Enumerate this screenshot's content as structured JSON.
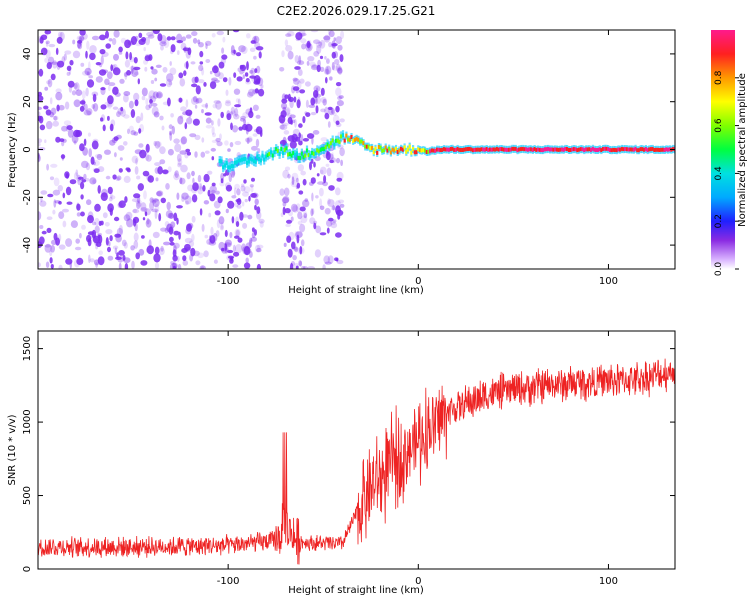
{
  "title": "C2E2.2026.029.17.25.G21",
  "colors": {
    "snr_line": "#ee2222",
    "axis": "#000000",
    "scatter": "#7b2cf0"
  },
  "chart_data": [
    {
      "type": "heatmap",
      "name": "spectrogram",
      "xlabel": "Height of straight line (km)",
      "ylabel": "Frequency (Hz)",
      "xlim": [
        -200,
        135
      ],
      "ylim": [
        -50,
        50
      ],
      "xticks": [
        -100,
        0,
        100
      ],
      "xtick_labels": [
        "-100",
        "0",
        "100"
      ],
      "yticks": [
        -40,
        -20,
        0,
        20,
        40
      ],
      "ytick_labels": [
        "-40",
        "-20",
        "0",
        "20",
        "40"
      ],
      "colorbar": {
        "label": "Normalized spectral amplitude",
        "range": [
          0,
          1
        ],
        "ticks": [
          0,
          0.2,
          0.4,
          0.6,
          0.8
        ],
        "tick_labels": [
          "0.0",
          "0.2",
          "0.4",
          "0.6",
          "0.8"
        ]
      },
      "signal_track": {
        "x": [
          -105,
          -95,
          -85,
          -75,
          -70,
          -65,
          -60,
          -50,
          -45,
          -40,
          -35,
          -30,
          -25,
          -20,
          -15,
          -10,
          -5,
          0,
          5,
          10,
          20,
          40,
          60,
          80,
          100,
          120,
          135
        ],
        "y": [
          -6,
          -6,
          -4,
          -1,
          0,
          -3,
          -2,
          1,
          3,
          5,
          4,
          2,
          0,
          0,
          0,
          0,
          0,
          0,
          -1,
          0,
          0,
          0,
          0,
          0,
          0,
          0,
          0
        ]
      }
    },
    {
      "type": "line",
      "name": "snr",
      "xlabel": "Height of straight line (km)",
      "ylabel": "SNR (10 * v/v)",
      "xlim": [
        -200,
        135
      ],
      "ylim": [
        0,
        1620
      ],
      "xticks": [
        -100,
        0,
        100
      ],
      "xtick_labels": [
        "-100",
        "0",
        "100"
      ],
      "yticks": [
        0,
        500,
        1000,
        1500
      ],
      "ytick_labels": [
        "0",
        "500",
        "1000",
        "1500"
      ],
      "trend": {
        "x": [
          -200,
          -150,
          -100,
          -80,
          -75,
          -70,
          -65,
          -60,
          -40,
          -30,
          -25,
          -20,
          -15,
          -10,
          -5,
          0,
          5,
          10,
          15,
          20,
          30,
          40,
          50,
          60,
          80,
          100,
          120,
          135
        ],
        "y": [
          150,
          150,
          160,
          185,
          190,
          300,
          210,
          180,
          170,
          450,
          550,
          600,
          700,
          760,
          820,
          880,
          950,
          1000,
          1070,
          1100,
          1150,
          1200,
          1220,
          1240,
          1260,
          1280,
          1300,
          1350
        ]
      }
    }
  ]
}
